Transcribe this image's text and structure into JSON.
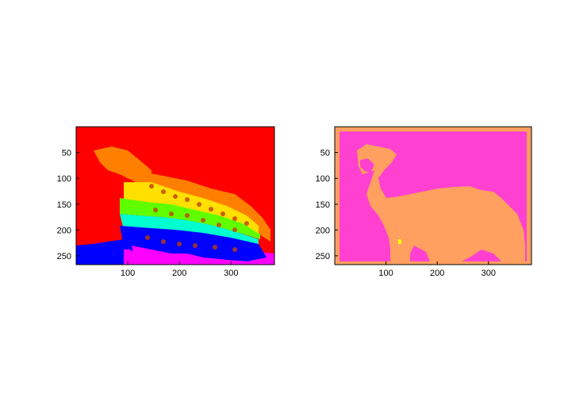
{
  "figure": {
    "panels": [
      {
        "name": "segmentation-map-left",
        "image_description_colors": {
          "background": "#ff0000",
          "cluster_orange": "#ff8000",
          "cluster_yellow": "#ffe000",
          "cluster_green": "#60ff00",
          "cluster_cyan": "#00ffd0",
          "cluster_blue": "#0000ff",
          "cluster_magenta": "#ff00ff"
        },
        "xticks": [
          "100",
          "200",
          "300"
        ],
        "yticks": [
          "50",
          "100",
          "150",
          "200",
          "250"
        ]
      },
      {
        "name": "segmentation-map-right",
        "image_description_colors": {
          "background": "#ff40d0",
          "foreground": "#ffa060",
          "speck": "#ffff00"
        },
        "xticks": [
          "100",
          "200",
          "300"
        ],
        "yticks": [
          "50",
          "100",
          "150",
          "200",
          "250"
        ]
      }
    ]
  },
  "chart_data": [
    {
      "type": "heatmap",
      "title": "",
      "xlabel": "",
      "ylabel": "",
      "xlim": [
        0,
        384
      ],
      "ylim": [
        267,
        0
      ],
      "xticks": [
        100,
        200,
        300
      ],
      "yticks": [
        50,
        100,
        150,
        200,
        250
      ]
    },
    {
      "type": "heatmap",
      "title": "",
      "xlabel": "",
      "ylabel": "",
      "xlim": [
        0,
        384
      ],
      "ylim": [
        267,
        0
      ],
      "xticks": [
        100,
        200,
        300
      ],
      "yticks": [
        50,
        100,
        150,
        200,
        250
      ]
    }
  ]
}
